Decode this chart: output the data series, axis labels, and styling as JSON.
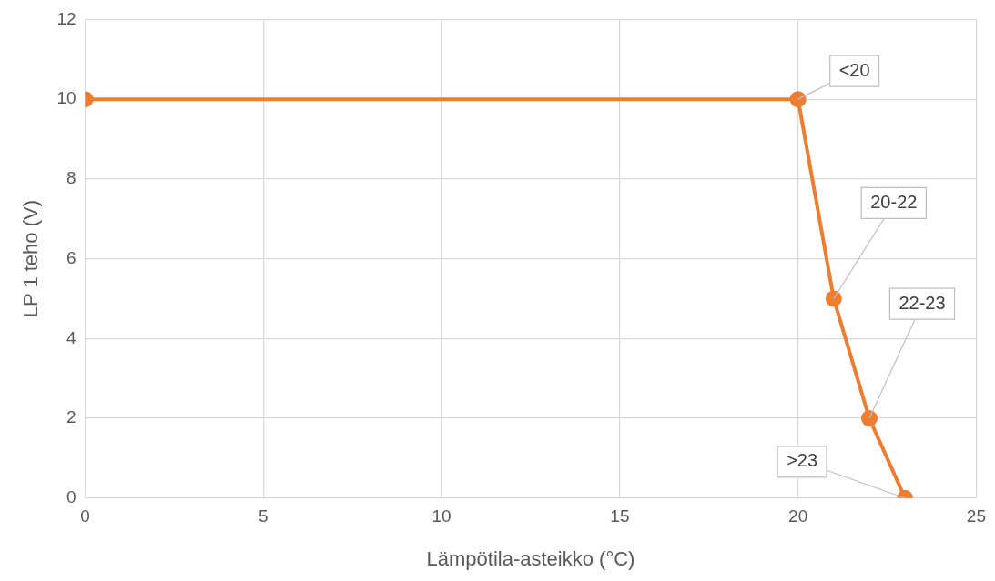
{
  "chart_data": {
    "type": "line",
    "xlabel": "Lämpötila-asteikko (°C)",
    "ylabel": "LP 1 teho (V)",
    "x": [
      0,
      20,
      21,
      22,
      23
    ],
    "series": [
      {
        "color": "#ed7d31",
        "values": [
          10,
          10,
          5,
          2,
          0
        ]
      }
    ],
    "xlim": [
      0,
      25
    ],
    "xticks": [
      0,
      5,
      10,
      15,
      20,
      25
    ],
    "ylim": [
      0,
      12
    ],
    "yticks": [
      0,
      2,
      4,
      6,
      8,
      10,
      12
    ],
    "grid": true,
    "legend": false,
    "marker": "circle",
    "line_style": "solid",
    "annotations": [
      {
        "text": "<20",
        "x": 20,
        "y": 10
      },
      {
        "text": "20-22",
        "x": 21,
        "y": 5
      },
      {
        "text": "22-23",
        "x": 22,
        "y": 2
      },
      {
        "text": ">23",
        "x": 23,
        "y": 0
      }
    ]
  }
}
